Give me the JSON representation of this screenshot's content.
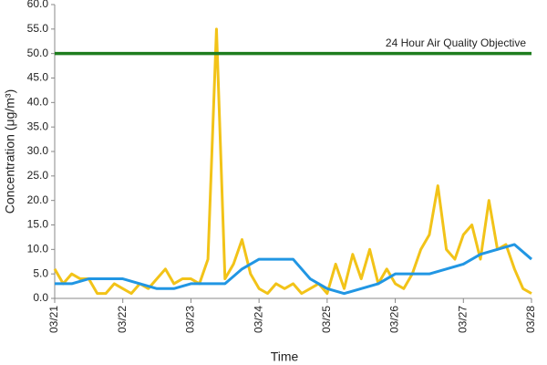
{
  "chart_data": {
    "type": "line",
    "ylabel": "Concentration (μg/m³)",
    "xlabel": "Time",
    "xlim": [
      0,
      168
    ],
    "xticks": [
      {
        "value": 0,
        "label": "03/21"
      },
      {
        "value": 24,
        "label": "03/22"
      },
      {
        "value": 48,
        "label": "03/23"
      },
      {
        "value": 72,
        "label": "03/24"
      },
      {
        "value": 96,
        "label": "03/25"
      },
      {
        "value": 120,
        "label": "03/26"
      },
      {
        "value": 144,
        "label": "03/27"
      },
      {
        "value": 168,
        "label": "03/28"
      }
    ],
    "ylim": [
      0,
      60
    ],
    "yticks": [
      {
        "value": 0,
        "label": "0.0"
      },
      {
        "value": 5,
        "label": "5.0"
      },
      {
        "value": 10,
        "label": "10.0"
      },
      {
        "value": 15,
        "label": "15.0"
      },
      {
        "value": 20,
        "label": "20.0"
      },
      {
        "value": 25,
        "label": "25.0"
      },
      {
        "value": 30,
        "label": "30.0"
      },
      {
        "value": 35,
        "label": "35.0"
      },
      {
        "value": 40,
        "label": "40.0"
      },
      {
        "value": 45,
        "label": "45.0"
      },
      {
        "value": 50,
        "label": "50.0"
      },
      {
        "value": 55,
        "label": "55.0"
      },
      {
        "value": 60,
        "label": "60.0"
      }
    ],
    "reference_line": {
      "value": 50,
      "label": "24 Hour Air Quality Objective",
      "color": "#1e7d1e"
    },
    "series": [
      {
        "color": "#f2c318",
        "x": [
          0,
          3,
          6,
          9,
          12,
          15,
          18,
          21,
          24,
          27,
          30,
          33,
          36,
          39,
          42,
          45,
          48,
          51,
          54,
          57,
          60,
          63,
          66,
          69,
          72,
          75,
          78,
          81,
          84,
          87,
          90,
          93,
          96,
          99,
          102,
          105,
          108,
          111,
          114,
          117,
          120,
          123,
          126,
          129,
          132,
          135,
          138,
          141,
          144,
          147,
          150,
          153,
          156,
          159,
          162,
          165,
          168
        ],
        "values": [
          6,
          3,
          5,
          4,
          4,
          1,
          1,
          3,
          2,
          1,
          3,
          2,
          4,
          6,
          3,
          4,
          4,
          3,
          8,
          55,
          4,
          7,
          12,
          5,
          2,
          1,
          3,
          2,
          3,
          1,
          2,
          3,
          1,
          7,
          2,
          9,
          4,
          10,
          3,
          6,
          3,
          2,
          5,
          10,
          13,
          23,
          10,
          8,
          13,
          15,
          8,
          20,
          10,
          11,
          6,
          2,
          1
        ]
      },
      {
        "color": "#2196e3",
        "x": [
          0,
          6,
          12,
          18,
          24,
          30,
          36,
          42,
          48,
          54,
          60,
          66,
          72,
          78,
          84,
          90,
          96,
          102,
          108,
          114,
          120,
          126,
          132,
          138,
          144,
          150,
          156,
          162,
          168
        ],
        "values": [
          3,
          3,
          4,
          4,
          4,
          3,
          2,
          2,
          3,
          3,
          3,
          6,
          8,
          8,
          8,
          4,
          2,
          1,
          2,
          3,
          5,
          5,
          5,
          6,
          7,
          9,
          10,
          11,
          8
        ]
      }
    ]
  }
}
